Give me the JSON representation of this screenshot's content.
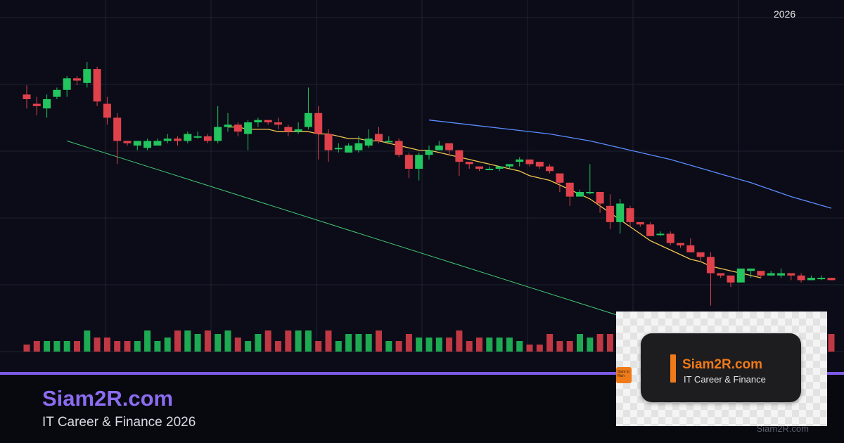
{
  "chart_data": {
    "type": "candlestick",
    "year_label": "2026",
    "ylim": [
      0,
      100
    ],
    "grid": true,
    "colors": {
      "up": "#22c55e",
      "down": "#e0414b",
      "ma_short": "#f5c451",
      "ma_long": "#5b8cff",
      "trendline": "#4ade80",
      "grid": "#1f2233",
      "background": "#0b0c17"
    },
    "candles": [
      [
        82,
        80,
        86,
        76
      ],
      [
        78,
        77,
        81,
        73
      ],
      [
        76,
        80,
        82,
        72
      ],
      [
        81,
        84,
        85,
        80
      ],
      [
        84,
        89,
        90,
        81
      ],
      [
        89,
        88,
        90,
        86
      ],
      [
        87,
        93,
        96,
        85
      ],
      [
        93,
        79,
        94,
        77
      ],
      [
        78,
        72,
        81,
        69
      ],
      [
        72,
        62,
        74,
        52
      ],
      [
        62,
        61,
        62,
        60
      ],
      [
        60,
        62,
        62,
        58
      ],
      [
        59,
        62,
        63,
        58
      ],
      [
        60,
        62,
        63,
        60
      ],
      [
        62,
        63,
        65,
        61
      ],
      [
        63,
        62,
        64,
        60
      ],
      [
        62,
        65,
        66,
        61
      ],
      [
        64,
        64,
        66,
        63
      ],
      [
        64,
        62,
        65,
        61
      ],
      [
        62,
        68,
        77,
        61
      ],
      [
        68,
        69,
        74,
        66
      ],
      [
        69,
        66,
        70,
        64
      ],
      [
        65,
        70,
        71,
        58
      ],
      [
        70,
        71,
        72,
        68
      ],
      [
        71,
        70,
        71,
        69
      ],
      [
        70,
        69,
        72,
        67
      ],
      [
        68,
        66,
        69,
        64
      ],
      [
        66,
        67,
        70,
        65
      ],
      [
        68,
        74,
        85,
        67
      ],
      [
        74,
        65,
        77,
        54
      ],
      [
        65,
        58,
        67,
        53
      ],
      [
        59,
        59,
        61,
        57
      ],
      [
        57,
        60,
        61,
        57
      ],
      [
        58,
        61,
        64,
        57
      ],
      [
        60,
        63,
        67,
        59
      ],
      [
        65,
        62,
        68,
        61
      ],
      [
        62,
        62,
        64,
        61
      ],
      [
        62,
        56,
        63,
        55
      ],
      [
        56,
        50,
        57,
        46
      ],
      [
        50,
        56,
        57,
        45
      ],
      [
        56,
        58,
        60,
        54
      ],
      [
        58,
        60,
        62,
        58
      ],
      [
        61,
        58,
        61,
        56
      ],
      [
        58,
        53,
        58,
        47
      ],
      [
        53,
        52,
        53,
        50
      ],
      [
        51,
        50,
        51,
        49
      ],
      [
        50,
        50,
        51,
        50
      ],
      [
        50,
        51,
        51,
        49
      ],
      [
        51,
        52,
        52,
        50
      ],
      [
        53,
        54,
        55,
        51
      ],
      [
        54,
        52,
        54,
        51
      ],
      [
        53,
        51,
        52,
        50
      ],
      [
        51,
        49,
        52,
        48
      ],
      [
        48,
        44,
        48,
        40
      ],
      [
        44,
        38,
        44,
        34
      ],
      [
        38,
        40,
        41,
        38
      ],
      [
        40,
        40,
        52,
        39
      ],
      [
        40,
        35,
        40,
        31
      ],
      [
        34,
        27,
        39,
        24
      ],
      [
        27,
        35,
        37,
        22
      ],
      [
        33,
        27,
        34,
        25
      ],
      [
        27,
        26,
        27,
        25
      ],
      [
        26,
        21,
        27,
        21
      ],
      [
        22,
        22,
        23,
        21
      ],
      [
        22,
        18,
        23,
        17
      ],
      [
        18,
        17,
        18,
        16
      ],
      [
        17,
        14,
        20,
        14
      ],
      [
        14,
        12,
        14,
        10
      ],
      [
        12,
        5,
        14,
        -9
      ],
      [
        5,
        4,
        5,
        3
      ],
      [
        4,
        1,
        3,
        -1
      ],
      [
        1,
        7,
        7,
        1
      ],
      [
        6,
        7,
        7,
        3
      ],
      [
        6,
        4,
        5,
        3
      ],
      [
        4,
        5,
        6,
        4
      ],
      [
        4,
        5,
        7,
        3
      ],
      [
        5,
        4,
        5,
        2
      ],
      [
        4,
        2,
        5,
        1
      ],
      [
        2,
        3,
        4,
        2
      ],
      [
        3,
        3,
        4,
        2
      ],
      [
        3,
        2,
        3,
        2
      ]
    ],
    "volume": [
      2,
      3,
      3,
      3,
      3,
      3,
      6,
      4,
      4,
      3,
      3,
      3,
      6,
      3,
      4,
      6,
      6,
      5,
      6,
      5,
      6,
      4,
      3,
      5,
      6,
      3,
      6,
      6,
      6,
      3,
      6,
      3,
      5,
      5,
      5,
      6,
      3,
      3,
      5,
      4,
      4,
      4,
      4,
      6,
      3,
      4,
      4,
      4,
      4,
      3,
      2,
      2,
      5,
      3,
      3,
      5,
      4,
      5,
      5,
      4,
      3,
      5,
      6,
      3,
      4,
      6,
      6,
      6,
      4,
      6,
      6,
      6,
      6,
      6,
      6,
      6,
      6,
      6,
      6,
      6,
      5
    ],
    "ma_short": [
      [
        20,
        68
      ],
      [
        21,
        68
      ],
      [
        22,
        67
      ],
      [
        23,
        67
      ],
      [
        24,
        67
      ],
      [
        25,
        66
      ],
      [
        26,
        66
      ],
      [
        27,
        66
      ],
      [
        28,
        66
      ],
      [
        29,
        65
      ],
      [
        30,
        65
      ],
      [
        31,
        64
      ],
      [
        32,
        63
      ],
      [
        33,
        63
      ],
      [
        34,
        62
      ],
      [
        35,
        62
      ],
      [
        36,
        61
      ],
      [
        37,
        60
      ],
      [
        38,
        59
      ],
      [
        39,
        58
      ],
      [
        40,
        58
      ],
      [
        41,
        57
      ],
      [
        42,
        56
      ],
      [
        43,
        55
      ],
      [
        44,
        54
      ],
      [
        45,
        53
      ],
      [
        46,
        52
      ],
      [
        47,
        51
      ],
      [
        48,
        50
      ],
      [
        49,
        49
      ],
      [
        50,
        47
      ],
      [
        51,
        46
      ],
      [
        52,
        45
      ],
      [
        53,
        43
      ],
      [
        54,
        41
      ],
      [
        55,
        39
      ],
      [
        56,
        37
      ],
      [
        57,
        34
      ],
      [
        58,
        31
      ],
      [
        59,
        28
      ],
      [
        60,
        25
      ],
      [
        61,
        22
      ],
      [
        62,
        19
      ],
      [
        63,
        17
      ],
      [
        64,
        15
      ],
      [
        65,
        13
      ],
      [
        66,
        11
      ],
      [
        67,
        10
      ],
      [
        68,
        8
      ],
      [
        69,
        7
      ],
      [
        70,
        6
      ],
      [
        71,
        5
      ],
      [
        72,
        4
      ],
      [
        73,
        3
      ]
    ],
    "ma_long": [
      [
        40,
        71
      ],
      [
        44,
        69
      ],
      [
        48,
        67
      ],
      [
        52,
        65
      ],
      [
        56,
        62
      ],
      [
        60,
        58
      ],
      [
        64,
        54
      ],
      [
        68,
        49
      ],
      [
        72,
        44
      ],
      [
        76,
        38
      ],
      [
        80,
        33
      ]
    ],
    "trendline": [
      [
        4,
        62
      ],
      [
        47,
        3
      ]
    ]
  }
}
